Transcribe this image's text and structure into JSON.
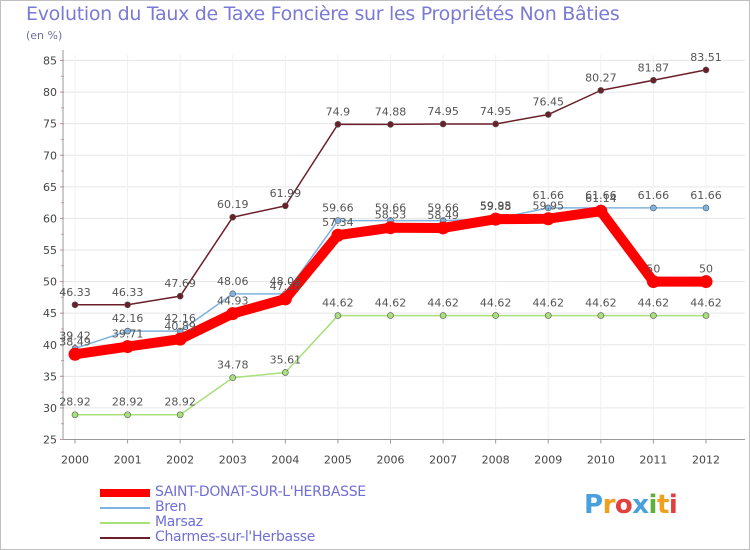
{
  "chart_data": {
    "type": "line",
    "title": "Evolution du Taux de Taxe Foncière sur les Propriétés Non Bâties",
    "ylabel": "(en %)",
    "xlabel": "",
    "ylim": [
      25,
      85
    ],
    "yticks": [
      "25",
      "30",
      "35",
      "40",
      "45",
      "50",
      "55",
      "60",
      "65",
      "70",
      "75",
      "80",
      "85"
    ],
    "x": [
      "2000",
      "2001",
      "2002",
      "2003",
      "2004",
      "2005",
      "2006",
      "2007",
      "2008",
      "2009",
      "2010",
      "2011",
      "2012"
    ],
    "series": [
      {
        "name": "Charmes-sur-l'Herbasse",
        "color": "#6b1f2a",
        "values": [
          46.33,
          46.33,
          47.69,
          60.19,
          61.99,
          74.9,
          74.88,
          74.95,
          74.95,
          76.45,
          80.27,
          81.87,
          83.51
        ],
        "labels": [
          "46.33",
          "46.33",
          "47.69",
          "60.19",
          "61.99",
          "74.9",
          "74.88",
          "74.95",
          "74.95",
          "76.45",
          "80.27",
          "81.87",
          "83.51"
        ]
      },
      {
        "name": "Marsaz",
        "color": "#a8e07a",
        "values": [
          28.92,
          28.92,
          28.92,
          34.78,
          35.61,
          44.62,
          44.62,
          44.62,
          44.62,
          44.62,
          44.62,
          44.62,
          44.62
        ],
        "labels": [
          "28.92",
          "28.92",
          "28.92",
          "34.78",
          "35.61",
          "44.62",
          "44.62",
          "44.62",
          "44.62",
          "44.62",
          "44.62",
          "44.62",
          "44.62"
        ]
      },
      {
        "name": "Bren",
        "color": "#7fb2de",
        "values": [
          39.42,
          42.16,
          42.16,
          48.06,
          48.06,
          59.66,
          59.66,
          59.66,
          59.95,
          61.66,
          61.66,
          61.66,
          61.66
        ],
        "labels": [
          "39.42",
          "42.16",
          "42.16",
          "48.06",
          "48.06",
          "59.66",
          "59.66",
          "59.66",
          "59.95",
          "61.66",
          "61.66",
          "61.66",
          "61.66"
        ]
      },
      {
        "name": "SAINT-DONAT-SUR-L'HERBASSE",
        "color": "#ff0000",
        "values": [
          38.49,
          39.71,
          40.89,
          44.93,
          47.26,
          57.34,
          58.53,
          58.49,
          59.88,
          59.95,
          61.14,
          50,
          50
        ],
        "labels": [
          "38.49",
          "39.71",
          "40.89",
          "44.93",
          "47.26",
          "57.34",
          "58.53",
          "58.49",
          "59.88",
          "59.95",
          "61.14",
          "50",
          "50"
        ]
      }
    ],
    "legend": [
      {
        "name": "SAINT-DONAT-SUR-L'HERBASSE",
        "color": "#ff0000"
      },
      {
        "name": "Bren",
        "color": "#7fb2de"
      },
      {
        "name": "Marsaz",
        "color": "#a8e07a"
      },
      {
        "name": "Charmes-sur-l'Herbasse",
        "color": "#6b1f2a"
      }
    ],
    "legend_position": "bottom-left"
  },
  "logo": {
    "letters": [
      "P",
      "r",
      "o",
      "x",
      "i",
      "t",
      "i"
    ],
    "colors": [
      "#4aa0dc",
      "#f0a020",
      "#e04040",
      "#4aa0dc",
      "#60b040",
      "#f0a020",
      "#e04040"
    ]
  }
}
